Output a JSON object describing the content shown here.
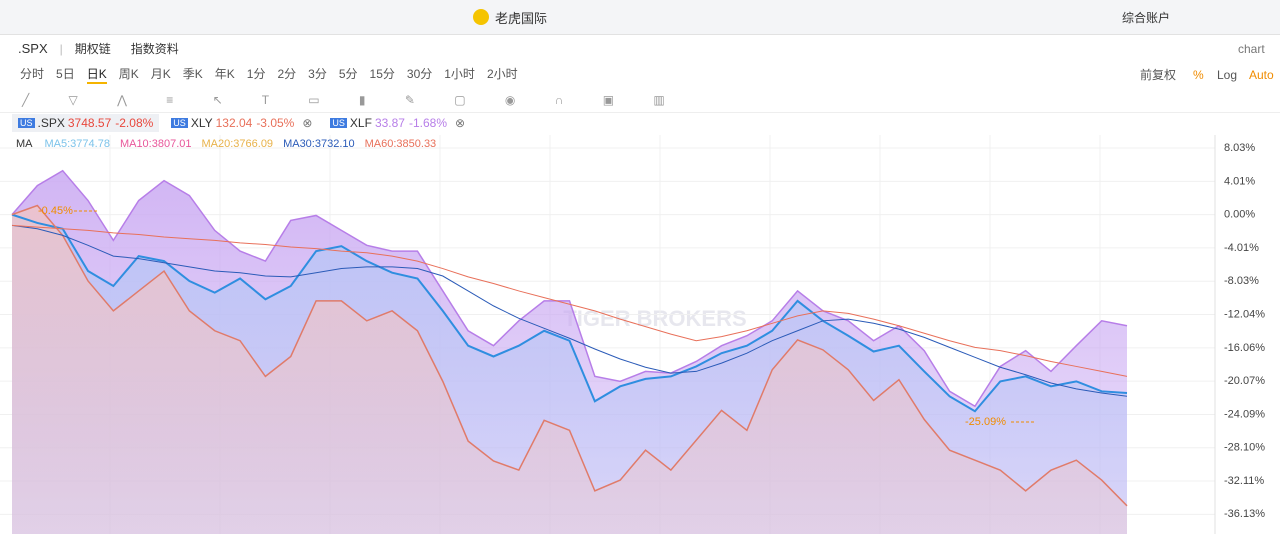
{
  "app_title": "老虎国际",
  "account": "综合账户",
  "header_right": "chart",
  "symbol": ".SPX",
  "tabs": [
    "期权链",
    "指数资料"
  ],
  "periods": [
    "分时",
    "5日",
    "日K",
    "周K",
    "月K",
    "季K",
    "年K",
    "1分",
    "2分",
    "3分",
    "5分",
    "15分",
    "30分",
    "1小时",
    "2小时"
  ],
  "active_period_index": 2,
  "adjust": "前复权",
  "pct": "%",
  "log": "Log",
  "auto": "Auto",
  "compare": [
    {
      "market": "US",
      "symbol": ".SPX",
      "price": 3748.57,
      "change": "-2.08%",
      "color": "#e8473c"
    },
    {
      "market": "US",
      "symbol": "XLY",
      "price": 132.04,
      "change": "-3.05%",
      "color": "#e8705a"
    },
    {
      "market": "US",
      "symbol": "XLF",
      "price": 33.87,
      "change": "-1.68%",
      "color": "#b77ee8"
    }
  ],
  "ma": {
    "label": "MA",
    "items": [
      {
        "text": "MA5:3774.78",
        "color": "#7cc3ea"
      },
      {
        "text": "MA10:3807.01",
        "color": "#e8569a"
      },
      {
        "text": "MA20:3766.09",
        "color": "#e8b24a"
      },
      {
        "text": "MA30:3732.10",
        "color": "#2b5bb8"
      },
      {
        "text": "MA60:3850.33",
        "color": "#e8705a"
      }
    ]
  },
  "watermark": "TIGER BROKERS",
  "chart_data": {
    "type": "line",
    "annotations": [
      "-0.45%",
      "-25.09%"
    ],
    "categories": [
      null,
      null,
      null,
      null,
      null,
      null,
      null,
      null,
      null,
      null,
      null,
      null,
      null,
      null,
      null,
      null,
      null,
      null,
      null,
      null,
      null,
      null,
      null,
      null,
      null,
      null,
      null,
      null,
      null,
      null,
      null,
      null,
      null,
      null,
      null,
      null,
      null,
      null,
      null,
      null,
      null,
      null,
      null,
      null,
      null
    ],
    "ylim": [
      -38.5,
      9.6
    ],
    "yticks": [
      {
        "value": 8.03,
        "label": "8.03%"
      },
      {
        "value": 4.01,
        "label": "4.01%"
      },
      {
        "value": 0,
        "label": "0.00%"
      },
      {
        "value": -4.01,
        "label": "-4.01%"
      },
      {
        "value": -8.03,
        "label": "-8.03%"
      },
      {
        "value": -12.04,
        "label": "-12.04%"
      },
      {
        "value": -16.06,
        "label": "-16.06%"
      },
      {
        "value": -20.07,
        "label": "-20.07%"
      },
      {
        "value": -24.09,
        "label": "-24.09%"
      },
      {
        "value": -28.1,
        "label": "-28.10%"
      },
      {
        "value": -32.11,
        "label": "-32.11%"
      },
      {
        "value": -36.13,
        "label": "-36.13%"
      }
    ],
    "grid": true,
    "series": [
      {
        "name": "XLF",
        "color": "#b77ee8",
        "area": "#c9a8f2",
        "values": [
          0,
          3.5,
          5.3,
          1.7,
          -3.1,
          1.7,
          4.1,
          2.3,
          -1.9,
          -4.4,
          -5.6,
          -0.7,
          -0.1,
          -1.9,
          -3.7,
          -4.4,
          -4.4,
          -9.2,
          -14.0,
          -15.8,
          -12.8,
          -10.4,
          -10.4,
          -19.5,
          -20.1,
          -18.9,
          -19.1,
          -17.7,
          -15.8,
          -14.6,
          -12.8,
          -9.2,
          -11.6,
          -12.8,
          -15.2,
          -13.4,
          -16.4,
          -21.3,
          -23.1,
          -18.3,
          -16.4,
          -18.9,
          -15.8,
          -12.8,
          -13.4
        ]
      },
      {
        "name": ".SPX",
        "color": "#2f8ee0",
        "area": "#b9c6f6",
        "values": [
          0,
          -1.0,
          -1.7,
          -6.8,
          -8.6,
          -5.0,
          -5.6,
          -8.0,
          -9.4,
          -7.7,
          -10.2,
          -8.6,
          -4.4,
          -3.8,
          -5.6,
          -7.0,
          -7.7,
          -11.6,
          -15.8,
          -17.1,
          -15.8,
          -14.0,
          -15.2,
          -22.5,
          -20.7,
          -19.8,
          -19.5,
          -18.3,
          -16.7,
          -15.8,
          -14.0,
          -10.4,
          -12.8,
          -14.6,
          -16.5,
          -15.8,
          -18.9,
          -21.9,
          -23.7,
          -20.1,
          -19.5,
          -20.7,
          -20.1,
          -21.3,
          -21.5
        ]
      },
      {
        "name": "XLY",
        "color": "#e07b6a",
        "area": "#efc4c8",
        "values": [
          0,
          1.1,
          -2.5,
          -8.0,
          -11.6,
          -9.2,
          -6.8,
          -11.6,
          -14.0,
          -15.2,
          -19.5,
          -17.1,
          -10.4,
          -10.4,
          -12.8,
          -11.6,
          -14.0,
          -20.1,
          -27.3,
          -29.7,
          -30.8,
          -24.8,
          -26.0,
          -33.3,
          -32.0,
          -28.4,
          -30.8,
          -27.2,
          -23.6,
          -26.0,
          -18.7,
          -15.1,
          -16.3,
          -18.7,
          -22.4,
          -19.9,
          -24.7,
          -28.4,
          -29.6,
          -30.8,
          -33.3,
          -30.8,
          -29.6,
          -32.0,
          -35.1
        ]
      },
      {
        "name": "MA30",
        "color": "#2b5bb8",
        "values": [
          -1.3,
          -1.7,
          -2.5,
          -3.7,
          -5.0,
          -5.3,
          -5.8,
          -6.3,
          -6.8,
          -7.0,
          -7.4,
          -7.5,
          -7.0,
          -6.5,
          -6.3,
          -6.3,
          -6.5,
          -7.4,
          -9.2,
          -11.0,
          -12.5,
          -13.7,
          -14.9,
          -16.2,
          -17.4,
          -18.4,
          -19.1,
          -18.9,
          -17.9,
          -16.7,
          -15.2,
          -14.0,
          -12.8,
          -12.6,
          -13.1,
          -13.8,
          -14.8,
          -16.0,
          -17.2,
          -18.4,
          -19.3,
          -20.3,
          -21.0,
          -21.5,
          -21.9
        ]
      },
      {
        "name": "MA60",
        "color": "#e8705a",
        "values": [
          -1.3,
          -1.5,
          -1.7,
          -1.9,
          -2.2,
          -2.4,
          -2.7,
          -2.9,
          -3.1,
          -3.4,
          -3.6,
          -3.9,
          -4.1,
          -4.4,
          -4.6,
          -5.0,
          -5.6,
          -6.5,
          -7.5,
          -8.3,
          -9.2,
          -10.0,
          -10.8,
          -11.6,
          -12.6,
          -13.5,
          -14.4,
          -15.2,
          -14.7,
          -14.0,
          -13.1,
          -12.2,
          -11.6,
          -11.9,
          -12.6,
          -13.4,
          -14.3,
          -15.2,
          -16.0,
          -16.4,
          -17.0,
          -17.7,
          -18.3,
          -18.9,
          -19.5
        ]
      }
    ]
  }
}
